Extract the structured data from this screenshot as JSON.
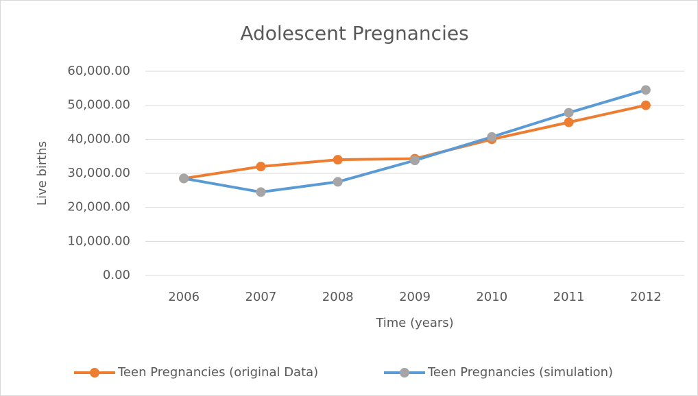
{
  "chart_data": {
    "type": "line",
    "title": "Adolescent Pregnancies",
    "x_label": "Time (years)",
    "y_label": "Live births",
    "categories": [
      "2006",
      "2007",
      "2008",
      "2009",
      "2010",
      "2011",
      "2012"
    ],
    "series": [
      {
        "name": "Teen Pregnancies (original Data)",
        "color": "#ed7d31",
        "marker_color": "#ed7d31",
        "values": [
          28500,
          32000,
          34000,
          34300,
          40000,
          45000,
          50000
        ]
      },
      {
        "name": "Teen Pregnancies (simulation)",
        "color": "#5b9bd5",
        "marker_color": "#a5a5a5",
        "values": [
          28500,
          24500,
          27500,
          33800,
          40700,
          47800,
          54500
        ]
      }
    ],
    "ylim": [
      0,
      60000
    ],
    "yticks": [
      {
        "value": 0,
        "label": "0.00"
      },
      {
        "value": 10000,
        "label": "10,000.00"
      },
      {
        "value": 20000,
        "label": "20,000.00"
      },
      {
        "value": 30000,
        "label": "30,000.00"
      },
      {
        "value": 40000,
        "label": "40,000.00"
      },
      {
        "value": 50000,
        "label": "50,000.00"
      },
      {
        "value": 60000,
        "label": "60,000.00"
      }
    ],
    "grid": true,
    "legend": "bottom"
  }
}
